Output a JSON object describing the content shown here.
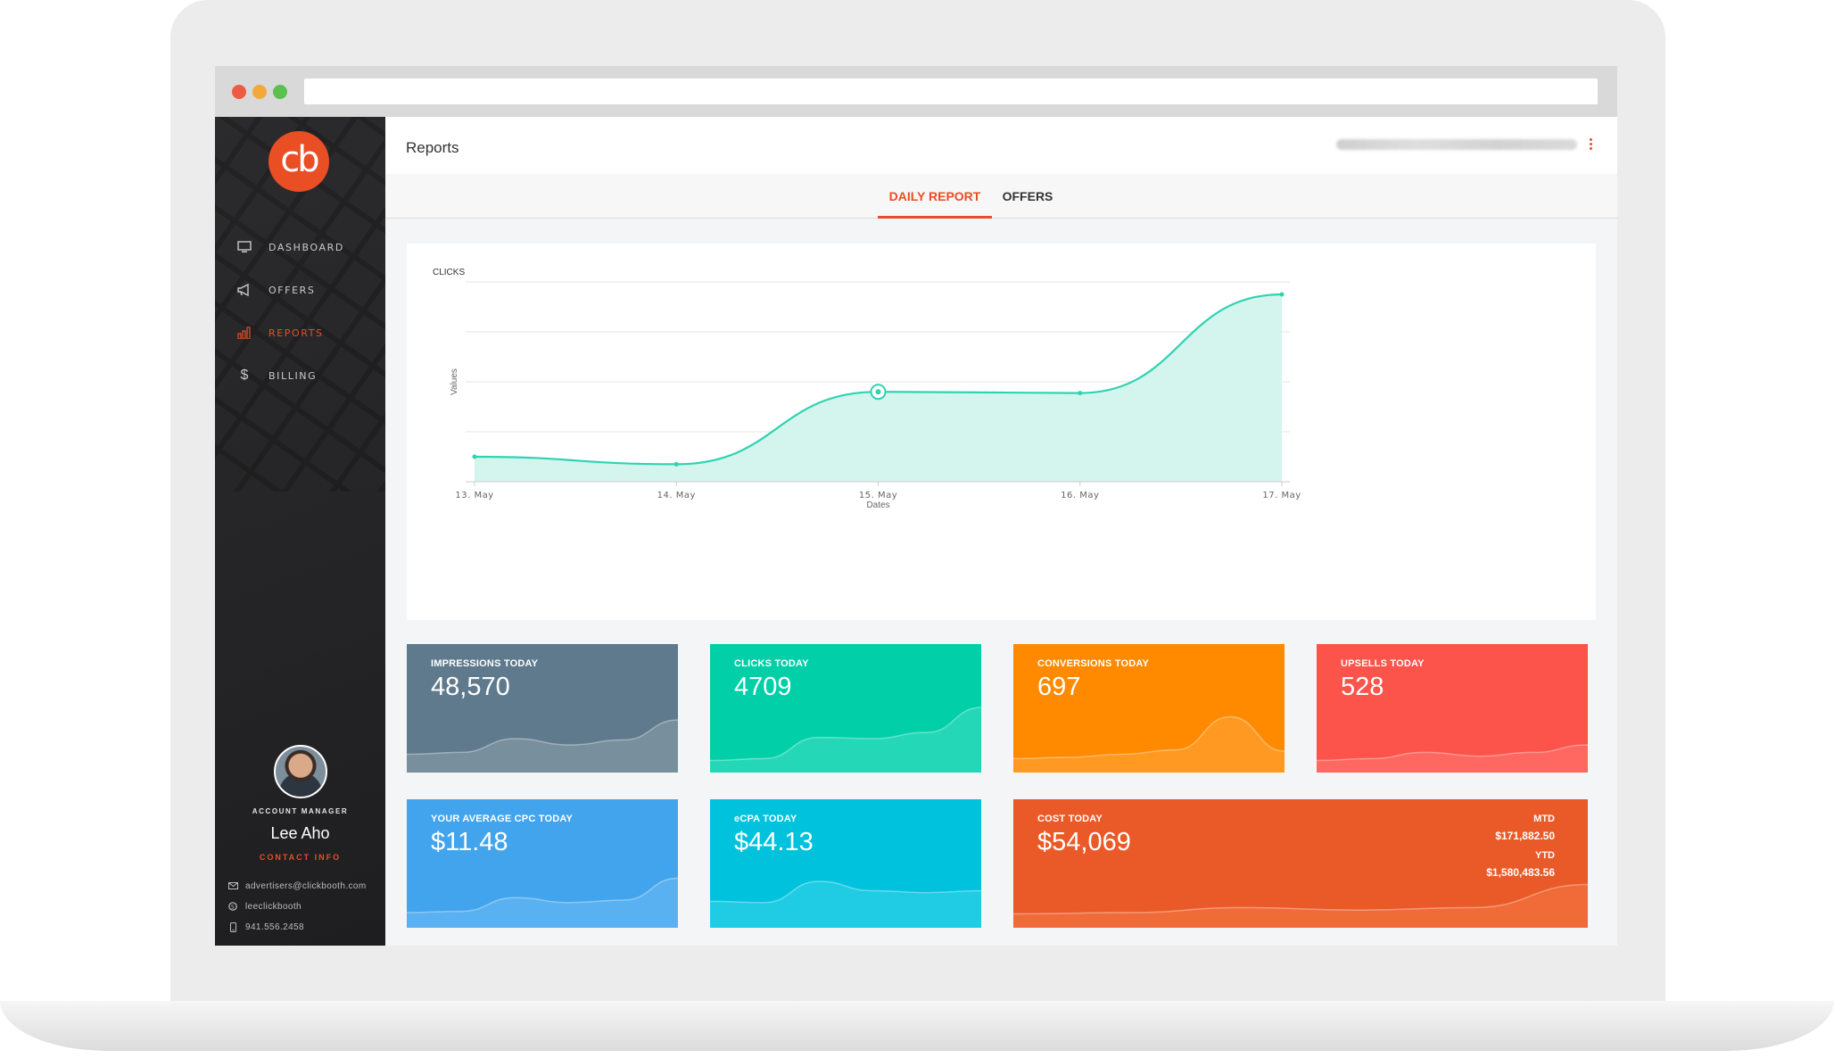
{
  "sidebar": {
    "logo_text": "cb",
    "nav": [
      {
        "label": "DASHBOARD",
        "icon": "monitor-icon",
        "active": false
      },
      {
        "label": "OFFERS",
        "icon": "megaphone-icon",
        "active": false
      },
      {
        "label": "REPORTS",
        "icon": "bar-chart-icon",
        "active": true
      },
      {
        "label": "BILLING",
        "icon": "dollar-icon",
        "active": false
      }
    ],
    "manager": {
      "title": "ACCOUNT MANAGER",
      "name": "Lee Aho",
      "contact_label": "CONTACT INFO",
      "email": "advertisers@clickbooth.com",
      "skype": "leeclickbooth",
      "phone": "941.556.2458"
    }
  },
  "header": {
    "title": "Reports"
  },
  "tabs": [
    {
      "label": "DAILY REPORT",
      "active": true
    },
    {
      "label": "OFFERS",
      "active": false
    }
  ],
  "chart_data": {
    "type": "area",
    "title": "CLICKS",
    "xlabel": "Dates",
    "ylabel": "Values",
    "x": [
      "13. May",
      "14. May",
      "15. May",
      "16. May",
      "17. May"
    ],
    "values": [
      1000,
      700,
      3600,
      3550,
      7500
    ],
    "ylim": [
      0,
      8000
    ],
    "grid": true,
    "line_color": "#2fd3b2",
    "fill_color": "#d4f5ee",
    "highlighted_point": "15. May"
  },
  "tiles": [
    {
      "label": "IMPRESSIONS TODAY",
      "value": "48,570",
      "color": "#5f7a8c",
      "spark_color": "#8ca0ad"
    },
    {
      "label": "CLICKS TODAY",
      "value": "4709",
      "color": "#00cfa8",
      "spark_color": "#42e0c3"
    },
    {
      "label": "CONVERSIONS TODAY",
      "value": "697",
      "color": "#ff8a00",
      "spark_color": "#ffa53c"
    },
    {
      "label": "UPSELLS TODAY",
      "value": "528",
      "color": "#fc534a",
      "spark_color": "#ff7a72"
    },
    {
      "label": "YOUR AVERAGE CPC TODAY",
      "value": "$11.48",
      "color": "#42a4ec",
      "spark_color": "#6dbcf5"
    },
    {
      "label": "eCPA TODAY",
      "value": "$44.13",
      "color": "#00c2dd",
      "spark_color": "#3ad4ea"
    },
    {
      "label": "COST TODAY",
      "value": "$54,069",
      "color": "#ea5a28",
      "spark_color": "#f47a45",
      "mtd_label": "MTD",
      "mtd_value": "$171,882.50",
      "ytd_label": "YTD",
      "ytd_value": "$1,580,483.56"
    }
  ]
}
